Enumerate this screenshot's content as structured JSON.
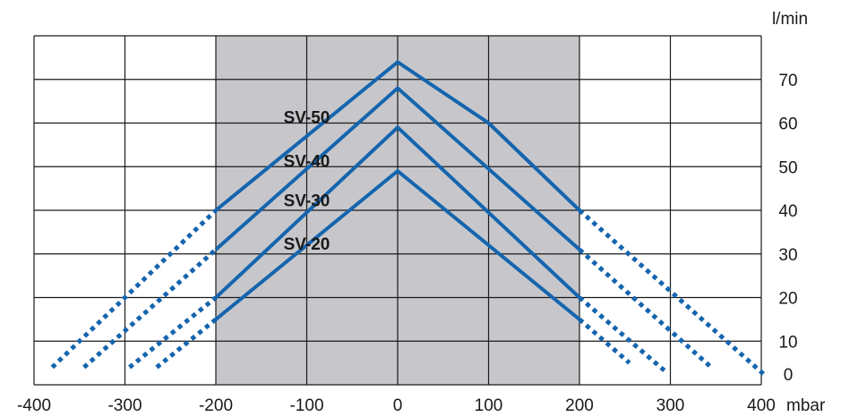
{
  "chart_data": {
    "type": "line",
    "xlabel": "mbar",
    "ylabel": "l/min",
    "xlim": [
      -400,
      400
    ],
    "ylim": [
      0,
      80
    ],
    "x_ticks": [
      -400,
      -300,
      -200,
      -100,
      0,
      100,
      200,
      300,
      400
    ],
    "y_ticks": [
      0,
      10,
      20,
      30,
      40,
      50,
      60,
      70
    ],
    "y_axis_position": "right",
    "grid": true,
    "shaded_range": [
      -200,
      200
    ],
    "colors": {
      "line": "#1565ae",
      "grid": "#1a1a1a",
      "shade": "#c7c7cb",
      "label": "#1a1a1a"
    },
    "series": [
      {
        "name": "SV-50",
        "solid": [
          [
            -200,
            40
          ],
          [
            0,
            74
          ],
          [
            100,
            60
          ],
          [
            200,
            40
          ]
        ],
        "dashed_left": [
          [
            -380,
            4
          ],
          [
            -200,
            40
          ]
        ],
        "dashed_right": [
          [
            200,
            40
          ],
          [
            405,
            2
          ]
        ]
      },
      {
        "name": "SV-40",
        "solid": [
          [
            -200,
            31
          ],
          [
            0,
            68
          ],
          [
            200,
            31
          ]
        ],
        "dashed_left": [
          [
            -345,
            4
          ],
          [
            -200,
            31
          ]
        ],
        "dashed_right": [
          [
            200,
            31
          ],
          [
            345,
            4
          ]
        ]
      },
      {
        "name": "SV-30",
        "solid": [
          [
            -200,
            20
          ],
          [
            0,
            59
          ],
          [
            200,
            20
          ]
        ],
        "dashed_left": [
          [
            -295,
            4
          ],
          [
            -200,
            20
          ]
        ],
        "dashed_right": [
          [
            200,
            20
          ],
          [
            295,
            3
          ]
        ]
      },
      {
        "name": "SV-20",
        "solid": [
          [
            -200,
            15
          ],
          [
            0,
            49
          ],
          [
            200,
            15
          ]
        ],
        "dashed_left": [
          [
            -265,
            4
          ],
          [
            -200,
            15
          ]
        ],
        "dashed_right": [
          [
            200,
            15
          ],
          [
            255,
            5
          ]
        ]
      }
    ],
    "labels": [
      {
        "text": "SV-50",
        "x": -100,
        "y": 61
      },
      {
        "text": "SV-40",
        "x": -100,
        "y": 51
      },
      {
        "text": "SV-30",
        "x": -100,
        "y": 42
      },
      {
        "text": "SV-20",
        "x": -100,
        "y": 32
      }
    ]
  }
}
